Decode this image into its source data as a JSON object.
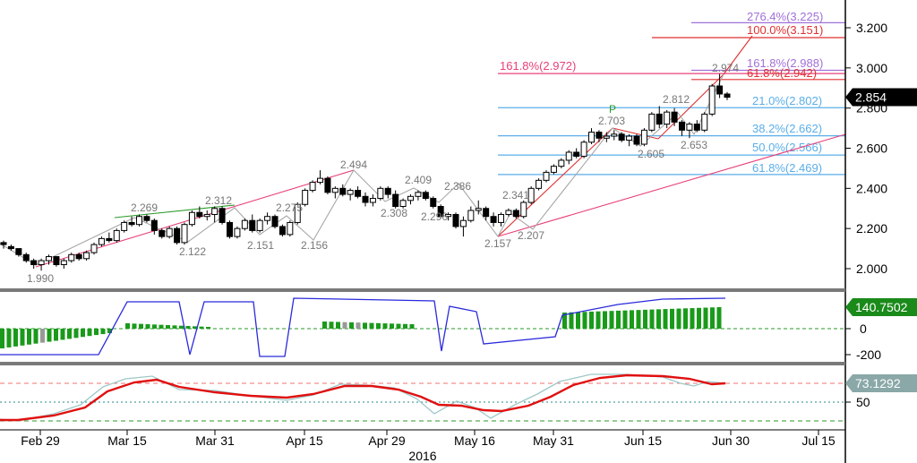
{
  "chart_data": [
    {
      "type": "candlestick",
      "pane": "price",
      "y_ticks": [
        "3.200",
        "3.000",
        "2.800",
        "2.600",
        "2.400",
        "2.200",
        "2.000"
      ],
      "ylim": [
        1.9,
        3.28
      ],
      "last_price": "2.854",
      "x_ticks": [
        "Feb 29",
        "Mar 15",
        "Mar 31",
        "Apr 15",
        "Apr 29",
        "May 16",
        "May 31",
        "Jun 15",
        "Jun 30",
        "Jul 15"
      ],
      "year_label": "2016",
      "ohlc": [
        [
          2.13,
          2.14,
          2.1,
          2.12
        ],
        [
          2.11,
          2.12,
          2.09,
          2.1
        ],
        [
          2.1,
          2.1,
          2.06,
          2.07
        ],
        [
          2.07,
          2.08,
          2.03,
          2.04
        ],
        [
          2.04,
          2.05,
          2.0,
          2.02
        ],
        [
          2.02,
          2.05,
          1.99,
          2.04
        ],
        [
          2.04,
          2.07,
          2.02,
          2.06
        ],
        [
          2.06,
          2.06,
          2.01,
          2.02
        ],
        [
          2.02,
          2.05,
          2.0,
          2.04
        ],
        [
          2.04,
          2.08,
          2.03,
          2.07
        ],
        [
          2.07,
          2.08,
          2.04,
          2.05
        ],
        [
          2.05,
          2.09,
          2.04,
          2.08
        ],
        [
          2.08,
          2.13,
          2.07,
          2.12
        ],
        [
          2.12,
          2.16,
          2.11,
          2.15
        ],
        [
          2.15,
          2.18,
          2.13,
          2.14
        ],
        [
          2.14,
          2.2,
          2.13,
          2.19
        ],
        [
          2.19,
          2.24,
          2.18,
          2.23
        ],
        [
          2.23,
          2.26,
          2.21,
          2.22
        ],
        [
          2.22,
          2.27,
          2.21,
          2.26
        ],
        [
          2.26,
          2.27,
          2.23,
          2.24
        ],
        [
          2.24,
          2.25,
          2.17,
          2.19
        ],
        [
          2.19,
          2.2,
          2.15,
          2.16
        ],
        [
          2.16,
          2.21,
          2.15,
          2.2
        ],
        [
          2.2,
          2.21,
          2.12,
          2.13
        ],
        [
          2.13,
          2.23,
          2.12,
          2.22
        ],
        [
          2.22,
          2.29,
          2.21,
          2.28
        ],
        [
          2.28,
          2.31,
          2.25,
          2.26
        ],
        [
          2.26,
          2.29,
          2.24,
          2.27
        ],
        [
          2.27,
          2.31,
          2.23,
          2.3
        ],
        [
          2.3,
          2.31,
          2.22,
          2.23
        ],
        [
          2.23,
          2.24,
          2.15,
          2.16
        ],
        [
          2.16,
          2.21,
          2.15,
          2.2
        ],
        [
          2.2,
          2.25,
          2.19,
          2.24
        ],
        [
          2.24,
          2.27,
          2.18,
          2.19
        ],
        [
          2.19,
          2.25,
          2.18,
          2.24
        ],
        [
          2.24,
          2.28,
          2.22,
          2.26
        ],
        [
          2.26,
          2.27,
          2.2,
          2.21
        ],
        [
          2.21,
          2.22,
          2.16,
          2.17
        ],
        [
          2.17,
          2.24,
          2.16,
          2.23
        ],
        [
          2.23,
          2.33,
          2.22,
          2.32
        ],
        [
          2.32,
          2.4,
          2.31,
          2.39
        ],
        [
          2.39,
          2.44,
          2.38,
          2.43
        ],
        [
          2.43,
          2.49,
          2.42,
          2.45
        ],
        [
          2.45,
          2.46,
          2.37,
          2.38
        ],
        [
          2.38,
          2.41,
          2.35,
          2.4
        ],
        [
          2.4,
          2.42,
          2.36,
          2.37
        ],
        [
          2.37,
          2.4,
          2.34,
          2.39
        ],
        [
          2.39,
          2.41,
          2.35,
          2.36
        ],
        [
          2.36,
          2.38,
          2.31,
          2.33
        ],
        [
          2.33,
          2.37,
          2.31,
          2.35
        ],
        [
          2.35,
          2.41,
          2.34,
          2.4
        ],
        [
          2.4,
          2.41,
          2.35,
          2.37
        ],
        [
          2.37,
          2.39,
          2.3,
          2.31
        ],
        [
          2.31,
          2.35,
          2.3,
          2.34
        ],
        [
          2.34,
          2.37,
          2.32,
          2.36
        ],
        [
          2.36,
          2.39,
          2.34,
          2.38
        ],
        [
          2.38,
          2.39,
          2.34,
          2.35
        ],
        [
          2.35,
          2.36,
          2.3,
          2.31
        ],
        [
          2.31,
          2.32,
          2.25,
          2.26
        ],
        [
          2.26,
          2.28,
          2.24,
          2.27
        ],
        [
          2.27,
          2.28,
          2.2,
          2.21
        ],
        [
          2.21,
          2.26,
          2.16,
          2.24
        ],
        [
          2.24,
          2.31,
          2.23,
          2.29
        ],
        [
          2.29,
          2.34,
          2.27,
          2.3
        ],
        [
          2.3,
          2.31,
          2.24,
          2.26
        ],
        [
          2.26,
          2.28,
          2.21,
          2.23
        ],
        [
          2.23,
          2.28,
          2.21,
          2.27
        ],
        [
          2.27,
          2.3,
          2.26,
          2.29
        ],
        [
          2.29,
          2.3,
          2.25,
          2.26
        ],
        [
          2.26,
          2.34,
          2.25,
          2.33
        ],
        [
          2.33,
          2.41,
          2.32,
          2.4
        ],
        [
          2.4,
          2.45,
          2.39,
          2.44
        ],
        [
          2.44,
          2.49,
          2.43,
          2.48
        ],
        [
          2.48,
          2.52,
          2.47,
          2.51
        ],
        [
          2.51,
          2.55,
          2.5,
          2.54
        ],
        [
          2.54,
          2.59,
          2.52,
          2.58
        ],
        [
          2.58,
          2.6,
          2.55,
          2.56
        ],
        [
          2.56,
          2.64,
          2.55,
          2.63
        ],
        [
          2.63,
          2.7,
          2.62,
          2.68
        ],
        [
          2.68,
          2.69,
          2.63,
          2.65
        ],
        [
          2.65,
          2.68,
          2.63,
          2.66
        ],
        [
          2.66,
          2.69,
          2.64,
          2.67
        ],
        [
          2.67,
          2.68,
          2.63,
          2.64
        ],
        [
          2.64,
          2.67,
          2.61,
          2.66
        ],
        [
          2.66,
          2.67,
          2.61,
          2.62
        ],
        [
          2.62,
          2.7,
          2.61,
          2.69
        ],
        [
          2.69,
          2.78,
          2.68,
          2.77
        ],
        [
          2.77,
          2.81,
          2.7,
          2.72
        ],
        [
          2.72,
          2.79,
          2.7,
          2.78
        ],
        [
          2.78,
          2.8,
          2.71,
          2.73
        ],
        [
          2.73,
          2.74,
          2.66,
          2.69
        ],
        [
          2.69,
          2.73,
          2.65,
          2.72
        ],
        [
          2.72,
          2.74,
          2.68,
          2.69
        ],
        [
          2.69,
          2.78,
          2.68,
          2.77
        ],
        [
          2.77,
          2.92,
          2.76,
          2.91
        ],
        [
          2.91,
          2.97,
          2.85,
          2.87
        ],
        [
          2.87,
          2.88,
          2.84,
          2.854
        ]
      ],
      "fib_lines": [
        {
          "label": "276.4%(3.225)",
          "value": 3.225,
          "color": "#a070d8"
        },
        {
          "label": "100.0%(3.151)",
          "value": 3.151,
          "color": "#e03030"
        },
        {
          "label": "161.8%(2.988)",
          "value": 2.988,
          "color": "#a070d8"
        },
        {
          "label": "161.8%(2.972)",
          "value": 2.972,
          "color": "#e8407a"
        },
        {
          "label": "61.8%(2.942)",
          "value": 2.942,
          "color": "#e03030"
        },
        {
          "label": "21.0%(2.802)",
          "value": 2.802,
          "color": "#5aaee8"
        },
        {
          "label": "38.2%(2.662)",
          "value": 2.662,
          "color": "#5aaee8"
        },
        {
          "label": "50.0%(2.566)",
          "value": 2.566,
          "color": "#5aaee8"
        },
        {
          "label": "61.8%(2.469)",
          "value": 2.469,
          "color": "#5aaee8"
        }
      ],
      "annotations": [
        "1.990",
        "2.269",
        "2.312",
        "2.122",
        "2.151",
        "2.275",
        "2.156",
        "2.494",
        "2.409",
        "2.308",
        "2.296",
        "2.386",
        "2.157",
        "2.341",
        "2.207",
        "2.703",
        "2.605",
        "2.812",
        "2.653",
        "2.974",
        "P"
      ]
    },
    {
      "type": "bar",
      "pane": "momentum",
      "y_ticks": [
        "0",
        "-200"
      ],
      "last_value": "140.7502",
      "colors": {
        "up": "#1a9a1a",
        "down": "#0a6e0a",
        "neutral": "#999999",
        "line": "#2a2adc"
      }
    },
    {
      "type": "line",
      "pane": "oscillator",
      "y_ticks": [
        "50"
      ],
      "last_value": "73.1292",
      "levels": [
        80,
        50,
        20
      ],
      "colors": {
        "main": "#e01010",
        "signal": "#9ec8c8"
      }
    }
  ]
}
